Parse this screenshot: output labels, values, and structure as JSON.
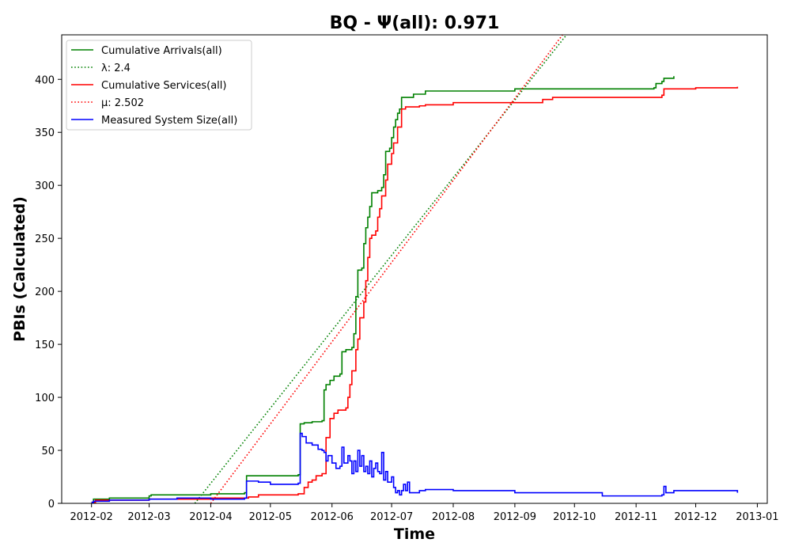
{
  "chart_data": {
    "type": "line",
    "title": "BQ -  Ψ(all): 0.971",
    "xlabel": "Time",
    "ylabel": "PBIs (Calculated)",
    "x_axis_type": "date",
    "xlim": [
      "2012-01-17",
      "2013-01-06"
    ],
    "ylim": [
      0,
      442
    ],
    "x_ticks": [
      "2012-02",
      "2012-03",
      "2012-04",
      "2012-05",
      "2012-06",
      "2012-07",
      "2012-08",
      "2012-09",
      "2012-10",
      "2012-11",
      "2012-12",
      "2013-01"
    ],
    "y_ticks": [
      0,
      50,
      100,
      150,
      200,
      250,
      300,
      350,
      400
    ],
    "grid": false,
    "legend_position": "upper-left",
    "series": [
      {
        "name": "Cumulative Arrivals(all)",
        "color": "#008000",
        "style": "solid",
        "step": true,
        "points": [
          [
            "2012-02-01",
            1
          ],
          [
            "2012-02-02",
            4
          ],
          [
            "2012-02-10",
            5
          ],
          [
            "2012-03-01",
            7
          ],
          [
            "2012-03-02",
            8
          ],
          [
            "2012-04-01",
            9
          ],
          [
            "2012-04-18",
            10
          ],
          [
            "2012-04-19",
            26
          ],
          [
            "2012-05-15",
            27
          ],
          [
            "2012-05-16",
            75
          ],
          [
            "2012-05-18",
            76
          ],
          [
            "2012-05-22",
            77
          ],
          [
            "2012-05-27",
            78
          ],
          [
            "2012-05-28",
            107
          ],
          [
            "2012-05-29",
            112
          ],
          [
            "2012-05-31",
            116
          ],
          [
            "2012-06-02",
            120
          ],
          [
            "2012-06-05",
            122
          ],
          [
            "2012-06-06",
            143
          ],
          [
            "2012-06-08",
            145
          ],
          [
            "2012-06-11",
            147
          ],
          [
            "2012-06-12",
            160
          ],
          [
            "2012-06-13",
            195
          ],
          [
            "2012-06-14",
            220
          ],
          [
            "2012-06-16",
            222
          ],
          [
            "2012-06-17",
            245
          ],
          [
            "2012-06-18",
            260
          ],
          [
            "2012-06-19",
            270
          ],
          [
            "2012-06-20",
            280
          ],
          [
            "2012-06-21",
            293
          ],
          [
            "2012-06-24",
            295
          ],
          [
            "2012-06-26",
            298
          ],
          [
            "2012-06-27",
            310
          ],
          [
            "2012-06-28",
            332
          ],
          [
            "2012-06-30",
            335
          ],
          [
            "2012-07-01",
            345
          ],
          [
            "2012-07-02",
            355
          ],
          [
            "2012-07-03",
            362
          ],
          [
            "2012-07-04",
            368
          ],
          [
            "2012-07-05",
            372
          ],
          [
            "2012-07-06",
            383
          ],
          [
            "2012-07-12",
            386
          ],
          [
            "2012-07-18",
            389
          ],
          [
            "2012-09-01",
            391
          ],
          [
            "2012-11-10",
            392
          ],
          [
            "2012-11-11",
            396
          ],
          [
            "2012-11-14",
            398
          ],
          [
            "2012-11-15",
            401
          ],
          [
            "2012-11-20",
            403
          ]
        ]
      },
      {
        "name": "λ: 2.4",
        "color": "#008000",
        "style": "dotted",
        "step": false,
        "points": [
          [
            "2012-03-24",
            0
          ],
          [
            "2012-09-27",
            442
          ]
        ]
      },
      {
        "name": "Cumulative Services(all)",
        "color": "#ff0000",
        "style": "solid",
        "step": true,
        "points": [
          [
            "2012-02-01",
            1
          ],
          [
            "2012-02-03",
            3
          ],
          [
            "2012-03-01",
            4
          ],
          [
            "2012-04-01",
            5
          ],
          [
            "2012-04-20",
            6
          ],
          [
            "2012-04-25",
            8
          ],
          [
            "2012-05-15",
            9
          ],
          [
            "2012-05-18",
            15
          ],
          [
            "2012-05-20",
            20
          ],
          [
            "2012-05-22",
            22
          ],
          [
            "2012-05-24",
            26
          ],
          [
            "2012-05-27",
            28
          ],
          [
            "2012-05-29",
            62
          ],
          [
            "2012-05-31",
            80
          ],
          [
            "2012-06-02",
            85
          ],
          [
            "2012-06-04",
            88
          ],
          [
            "2012-06-08",
            90
          ],
          [
            "2012-06-09",
            100
          ],
          [
            "2012-06-10",
            112
          ],
          [
            "2012-06-11",
            125
          ],
          [
            "2012-06-13",
            145
          ],
          [
            "2012-06-14",
            155
          ],
          [
            "2012-06-15",
            175
          ],
          [
            "2012-06-17",
            190
          ],
          [
            "2012-06-18",
            210
          ],
          [
            "2012-06-19",
            232
          ],
          [
            "2012-06-20",
            250
          ],
          [
            "2012-06-21",
            253
          ],
          [
            "2012-06-23",
            257
          ],
          [
            "2012-06-24",
            270
          ],
          [
            "2012-06-25",
            278
          ],
          [
            "2012-06-26",
            290
          ],
          [
            "2012-06-28",
            305
          ],
          [
            "2012-06-29",
            320
          ],
          [
            "2012-07-01",
            330
          ],
          [
            "2012-07-02",
            340
          ],
          [
            "2012-07-04",
            355
          ],
          [
            "2012-07-06",
            372
          ],
          [
            "2012-07-08",
            374
          ],
          [
            "2012-07-15",
            375
          ],
          [
            "2012-07-18",
            376
          ],
          [
            "2012-08-01",
            378
          ],
          [
            "2012-09-15",
            381
          ],
          [
            "2012-09-20",
            383
          ],
          [
            "2012-11-14",
            385
          ],
          [
            "2012-11-15",
            391
          ],
          [
            "2012-12-01",
            392
          ],
          [
            "2012-12-22",
            393
          ]
        ]
      },
      {
        "name": "μ: 2.502",
        "color": "#ff0000",
        "style": "dotted",
        "step": false,
        "points": [
          [
            "2012-04-01",
            0
          ],
          [
            "2012-09-25",
            442
          ]
        ]
      },
      {
        "name": "Measured System Size(all)",
        "color": "#0000ff",
        "style": "solid",
        "step": true,
        "points": [
          [
            "2012-02-01",
            1
          ],
          [
            "2012-02-02",
            2
          ],
          [
            "2012-02-10",
            3
          ],
          [
            "2012-03-01",
            4
          ],
          [
            "2012-03-15",
            5
          ],
          [
            "2012-04-01",
            4
          ],
          [
            "2012-04-18",
            5
          ],
          [
            "2012-04-19",
            21
          ],
          [
            "2012-04-25",
            20
          ],
          [
            "2012-05-01",
            18
          ],
          [
            "2012-05-15",
            19
          ],
          [
            "2012-05-16",
            66
          ],
          [
            "2012-05-17",
            63
          ],
          [
            "2012-05-19",
            57
          ],
          [
            "2012-05-22",
            55
          ],
          [
            "2012-05-25",
            51
          ],
          [
            "2012-05-27",
            50
          ],
          [
            "2012-05-28",
            48
          ],
          [
            "2012-05-29",
            40
          ],
          [
            "2012-05-30",
            45
          ],
          [
            "2012-06-01",
            38
          ],
          [
            "2012-06-03",
            33
          ],
          [
            "2012-06-05",
            35
          ],
          [
            "2012-06-06",
            53
          ],
          [
            "2012-06-07",
            38
          ],
          [
            "2012-06-09",
            45
          ],
          [
            "2012-06-10",
            40
          ],
          [
            "2012-06-11",
            28
          ],
          [
            "2012-06-12",
            40
          ],
          [
            "2012-06-13",
            30
          ],
          [
            "2012-06-14",
            50
          ],
          [
            "2012-06-15",
            35
          ],
          [
            "2012-06-16",
            45
          ],
          [
            "2012-06-17",
            30
          ],
          [
            "2012-06-18",
            35
          ],
          [
            "2012-06-19",
            28
          ],
          [
            "2012-06-20",
            40
          ],
          [
            "2012-06-21",
            25
          ],
          [
            "2012-06-22",
            33
          ],
          [
            "2012-06-23",
            38
          ],
          [
            "2012-06-24",
            30
          ],
          [
            "2012-06-25",
            28
          ],
          [
            "2012-06-26",
            48
          ],
          [
            "2012-06-27",
            22
          ],
          [
            "2012-06-28",
            30
          ],
          [
            "2012-06-29",
            20
          ],
          [
            "2012-07-01",
            25
          ],
          [
            "2012-07-02",
            15
          ],
          [
            "2012-07-03",
            10
          ],
          [
            "2012-07-04",
            12
          ],
          [
            "2012-07-05",
            8
          ],
          [
            "2012-07-06",
            12
          ],
          [
            "2012-07-07",
            18
          ],
          [
            "2012-07-08",
            12
          ],
          [
            "2012-07-09",
            20
          ],
          [
            "2012-07-10",
            10
          ],
          [
            "2012-07-15",
            12
          ],
          [
            "2012-07-18",
            13
          ],
          [
            "2012-08-01",
            12
          ],
          [
            "2012-09-01",
            10
          ],
          [
            "2012-10-15",
            7
          ],
          [
            "2012-11-14",
            8
          ],
          [
            "2012-11-15",
            16
          ],
          [
            "2012-11-16",
            10
          ],
          [
            "2012-11-20",
            12
          ],
          [
            "2012-12-22",
            10
          ]
        ]
      }
    ]
  }
}
